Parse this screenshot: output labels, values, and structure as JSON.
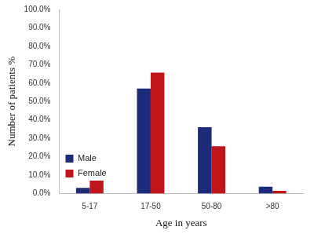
{
  "chart_data": {
    "type": "bar",
    "x_label": "Age in years",
    "y_label": "Number of patients %",
    "categories": [
      "5-17",
      "17-50",
      "50-80",
      ">80"
    ],
    "series": [
      {
        "name": "Male",
        "color": "#1c2b7a",
        "values": [
          3.0,
          57.0,
          36.0,
          3.7
        ]
      },
      {
        "name": "Female",
        "color": "#c0151b",
        "values": [
          7.0,
          65.7,
          25.7,
          1.5
        ]
      }
    ],
    "ylim": [
      0,
      100
    ],
    "yticks": [
      {
        "value": 0,
        "label": "0.0%"
      },
      {
        "value": 10,
        "label": "10.0%"
      },
      {
        "value": 20,
        "label": "20.0%"
      },
      {
        "value": 30,
        "label": "30.0%"
      },
      {
        "value": 40,
        "label": "40.0%"
      },
      {
        "value": 50,
        "label": "50.0%"
      },
      {
        "value": 60,
        "label": "60.0%"
      },
      {
        "value": 70,
        "label": "70.0%"
      },
      {
        "value": 80,
        "label": "80.0%"
      },
      {
        "value": 90,
        "label": "90.0%"
      },
      {
        "value": 100,
        "label": "100.0%"
      }
    ],
    "grid": false,
    "legend": "upper right"
  }
}
